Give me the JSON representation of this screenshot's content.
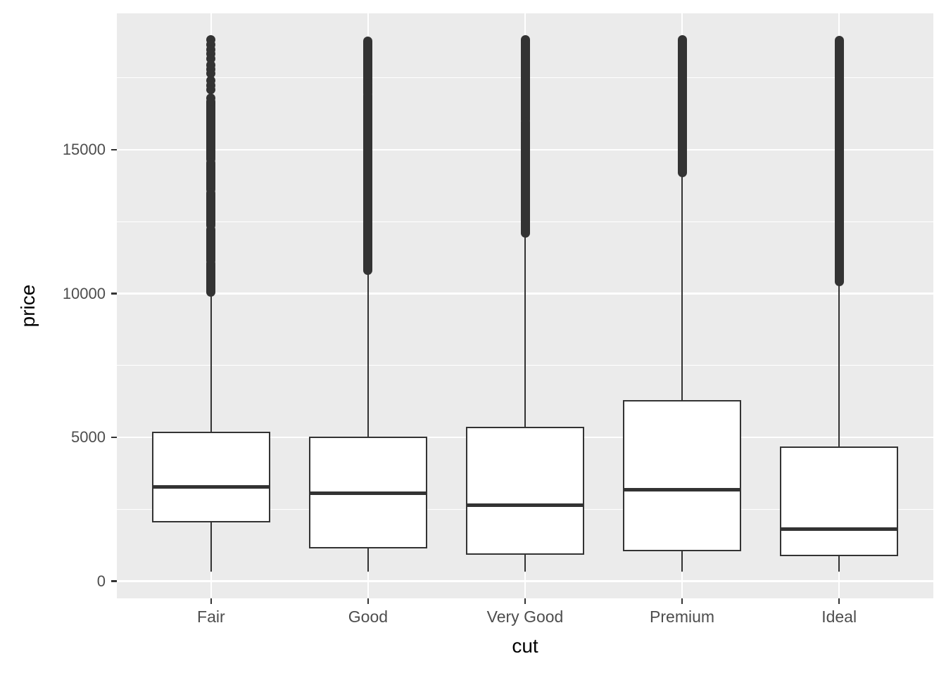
{
  "colors": {
    "background": "#FFFFFF",
    "panel_background": "#EBEBEB",
    "gridline": "#FFFFFF",
    "box_stroke": "#333333",
    "box_fill": "#FFFFFF",
    "tick_label": "#4D4D4D",
    "axis_title": "#000000"
  },
  "chart_data": {
    "type": "boxplot",
    "title": "",
    "xlabel": "cut",
    "ylabel": "price",
    "categories": [
      "Fair",
      "Good",
      "Very Good",
      "Premium",
      "Ideal"
    ],
    "y_major_ticks": [
      0,
      5000,
      10000,
      15000
    ],
    "y_tick_labels": [
      "0",
      "5000",
      "10000",
      "15000"
    ],
    "y_minor_ticks": [
      2500,
      7500,
      12500,
      17500
    ],
    "ylim": [
      -598,
      19747
    ],
    "grid": "major-and-minor-y, major-x, white on grey panel",
    "legend": "none",
    "boxes": [
      {
        "category": "Fair",
        "whisker_low": 337,
        "q1": 2050,
        "median": 3282,
        "q3": 5206,
        "whisker_high": 9938,
        "outlier_points": [
          18823,
          18650,
          18480,
          18330,
          18180,
          17950,
          17800,
          17650,
          17400,
          17250,
          17100,
          16800,
          16680
        ],
        "outlier_segments": [
          [
            16648,
            14670
          ],
          [
            14550,
            13620
          ],
          [
            13490,
            12370
          ],
          [
            12230,
            11160
          ],
          [
            11060,
            10060
          ]
        ]
      },
      {
        "category": "Good",
        "whisker_low": 327,
        "q1": 1145,
        "median": 3050,
        "q3": 5028,
        "whisker_high": 10789,
        "outlier_points": [],
        "outlier_segments": [
          [
            18788,
            17350
          ],
          [
            17280,
            16980
          ],
          [
            16900,
            10820
          ]
        ]
      },
      {
        "category": "Very Good",
        "whisker_low": 336,
        "q1": 912,
        "median": 2648,
        "q3": 5373,
        "whisker_high": 12057,
        "outlier_points": [],
        "outlier_segments": [
          [
            18818,
            16050
          ],
          [
            15980,
            12110
          ]
        ]
      },
      {
        "category": "Premium",
        "whisker_low": 326,
        "q1": 1046,
        "median": 3185,
        "q3": 6296,
        "whisker_high": 14167,
        "outlier_points": [],
        "outlier_segments": [
          [
            18823,
            14220
          ]
        ]
      },
      {
        "category": "Ideal",
        "whisker_low": 326,
        "q1": 878,
        "median": 1810,
        "q3": 4678,
        "whisker_high": 10372,
        "outlier_points": [],
        "outlier_segments": [
          [
            18806,
            10410
          ]
        ]
      }
    ]
  }
}
